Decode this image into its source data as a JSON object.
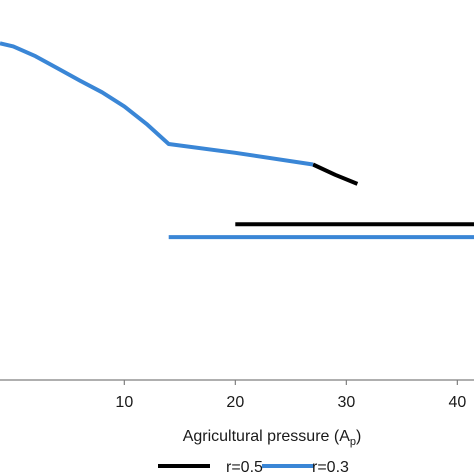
{
  "chart_data": {
    "type": "line",
    "title": "",
    "xlabel": "Agricultural pressure (A",
    "xlabel_subscript": "p",
    "xlabel_suffix": ")",
    "ylabel": "",
    "xlim": [
      -1.2,
      41.5
    ],
    "ylim": [
      0,
      10
    ],
    "x_ticks": [
      "10",
      "20",
      "30",
      "40"
    ],
    "x_tick_values": [
      10,
      20,
      30,
      40
    ],
    "grid": false,
    "legend": {
      "placement": "bottom",
      "entries": [
        {
          "label": "r=0.5",
          "color": "#000000"
        },
        {
          "label": "r=0.3",
          "color": "#3a86d6"
        }
      ]
    },
    "series": [
      {
        "name": "r=0.5",
        "color": "#000000",
        "segments": [
          {
            "x": [
              27,
              29,
              31
            ],
            "y": [
              5.67,
              5.4,
              5.16
            ]
          },
          {
            "x": [
              20,
              41.5
            ],
            "y": [
              4.1,
              4.1
            ]
          }
        ]
      },
      {
        "name": "r=0.3",
        "color": "#3a86d6",
        "segments": [
          {
            "x": [
              -1.2,
              0,
              2,
              4,
              6,
              8,
              10,
              12,
              14,
              20,
              27
            ],
            "y": [
              8.86,
              8.78,
              8.52,
              8.2,
              7.88,
              7.57,
              7.2,
              6.74,
              6.21,
              5.98,
              5.67
            ]
          },
          {
            "x": [
              14,
              41.5
            ],
            "y": [
              3.76,
              3.76
            ]
          }
        ]
      }
    ]
  }
}
